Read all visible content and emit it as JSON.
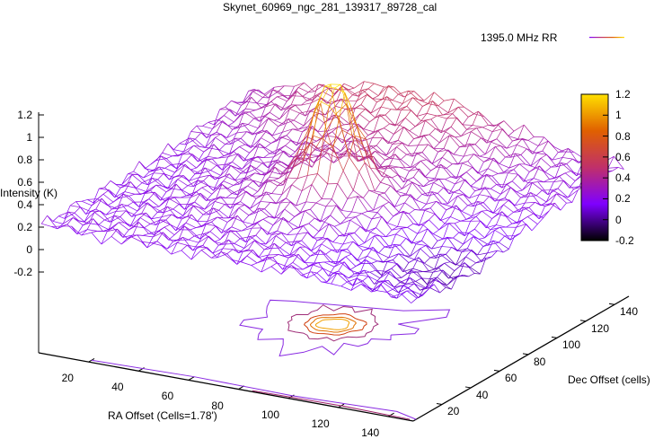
{
  "chart_data": {
    "type": "surface",
    "title": "Skynet_60969_ngc_281_139317_89728_cal",
    "legend": {
      "label": "1395.0 MHz RR",
      "placement": "top-right"
    },
    "xlabel": "RA Offset (Cells=1.78')",
    "ylabel": "Dec Offset (cells)",
    "zlabel": "Intensity (K)",
    "xticks": [
      "20",
      "40",
      "60",
      "80",
      "100",
      "120",
      "140"
    ],
    "yticks": [
      "20",
      "40",
      "60",
      "80",
      "100",
      "120",
      "140"
    ],
    "zticks": [
      "1.2",
      "1",
      "0.8",
      "0.6",
      "0.4",
      "0.2",
      "0",
      "-0.2"
    ],
    "xlim": [
      0,
      150
    ],
    "ylim": [
      0,
      150
    ],
    "zlim": [
      -0.2,
      1.2
    ],
    "colorbar": {
      "range": [
        -0.2,
        1.2
      ],
      "ticks": [
        "1.2",
        "1",
        "0.8",
        "0.6",
        "0.4",
        "0.2",
        "0",
        "-0.2"
      ],
      "palette": [
        "#000000",
        "#7f00ff",
        "#c0306a",
        "#e06000",
        "#ffe000"
      ]
    },
    "peak": {
      "x": 75,
      "y": 75,
      "z": 1.2
    },
    "baseline_level": 0.2,
    "contours": true,
    "grid": false
  }
}
